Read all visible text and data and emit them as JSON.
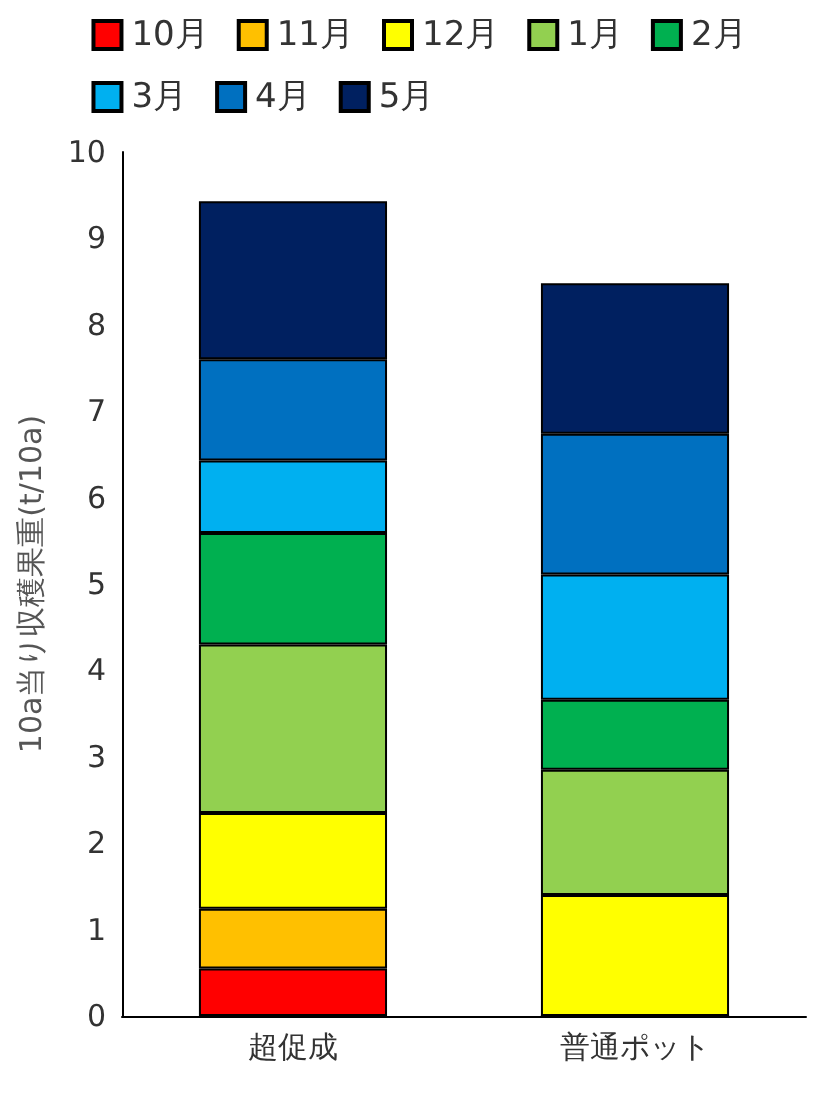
{
  "chart_data": {
    "type": "bar",
    "stacked": true,
    "categories": [
      "超促成",
      "普通ポット"
    ],
    "ylabel": "10a当り収穫果重(t/10a)",
    "ylim": [
      0,
      10
    ],
    "yticks": [
      0,
      1,
      2,
      3,
      4,
      5,
      6,
      7,
      8,
      9,
      10
    ],
    "grid": false,
    "legend": "top",
    "series": [
      {
        "name": "10月",
        "color": "#ff0000",
        "values": [
          0.55,
          0
        ]
      },
      {
        "name": "11月",
        "color": "#ffc000",
        "values": [
          0.69,
          0
        ]
      },
      {
        "name": "12月",
        "color": "#ffff00",
        "values": [
          1.11,
          1.4
        ]
      },
      {
        "name": "1月",
        "color": "#92d050",
        "values": [
          1.95,
          1.45
        ]
      },
      {
        "name": "2月",
        "color": "#00b050",
        "values": [
          1.29,
          0.81
        ]
      },
      {
        "name": "3月",
        "color": "#00b0f0",
        "values": [
          0.84,
          1.45
        ]
      },
      {
        "name": "4月",
        "color": "#0070c0",
        "values": [
          1.17,
          1.63
        ]
      },
      {
        "name": "5月",
        "color": "#002060",
        "values": [
          1.83,
          1.74
        ]
      }
    ]
  }
}
